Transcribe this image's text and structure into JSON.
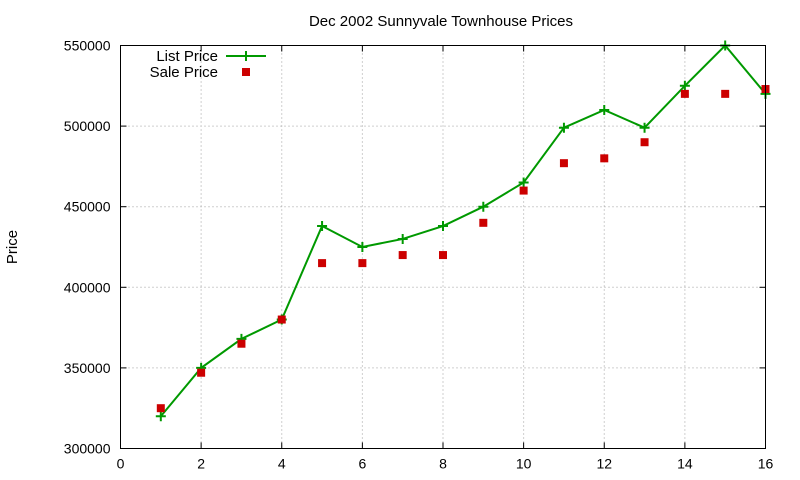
{
  "chart_data": {
    "type": "line",
    "title": "Dec 2002 Sunnyvale Townhouse Prices",
    "xlabel": "",
    "ylabel": "Price",
    "xlim": [
      0,
      16
    ],
    "ylim": [
      300000,
      550000
    ],
    "x_ticks": [
      0,
      2,
      4,
      6,
      8,
      10,
      12,
      14,
      16
    ],
    "y_ticks": [
      300000,
      350000,
      400000,
      450000,
      500000,
      550000
    ],
    "grid": true,
    "legend_position": "top-left",
    "series": [
      {
        "name": "List Price",
        "style": "line-with-plus-markers",
        "color": "#009900",
        "x": [
          1,
          2,
          3,
          4,
          5,
          6,
          7,
          8,
          9,
          10,
          11,
          12,
          13,
          14,
          15,
          16
        ],
        "y": [
          320000,
          350000,
          368000,
          380000,
          438000,
          425000,
          430000,
          438000,
          450000,
          465000,
          499000,
          510000,
          499000,
          525000,
          550000,
          520000
        ]
      },
      {
        "name": "Sale Price",
        "style": "square-markers",
        "color": "#cc0000",
        "x": [
          1,
          2,
          3,
          4,
          5,
          6,
          7,
          8,
          9,
          10,
          11,
          12,
          13,
          14,
          15,
          16
        ],
        "y": [
          325000,
          347000,
          365000,
          380000,
          415000,
          415000,
          420000,
          420000,
          440000,
          460000,
          477000,
          480000,
          490000,
          520000,
          520000,
          523000
        ]
      }
    ]
  }
}
